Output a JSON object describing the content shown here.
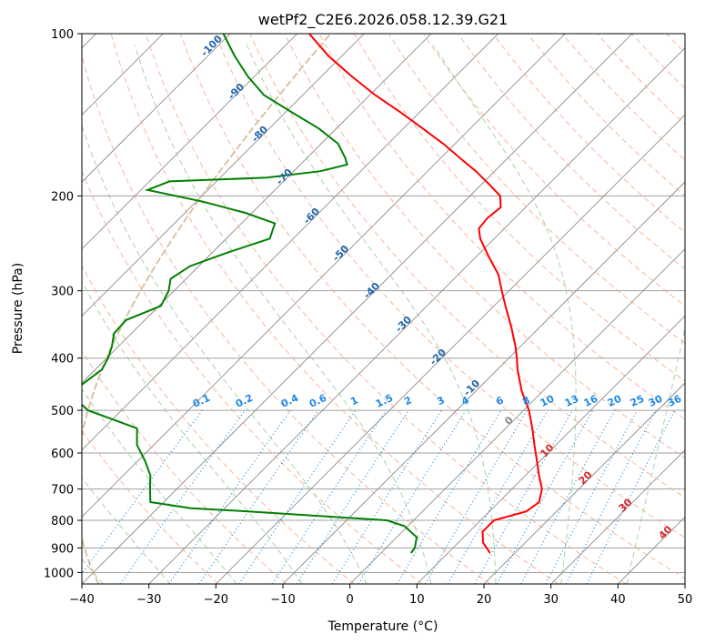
{
  "chart_data": {
    "type": "line",
    "title": "wetPf2_C2E6.2026.058.12.39.G21",
    "xlabel": "Temperature (°C)",
    "ylabel": "Pressure (hPa)",
    "xlim": [
      -40,
      50
    ],
    "ylim": [
      1050,
      100
    ],
    "y_scale": "log",
    "grid": true,
    "x_ticks": [
      -40,
      -30,
      -20,
      -10,
      0,
      10,
      20,
      30,
      40,
      50
    ],
    "y_ticks": [
      100,
      200,
      300,
      400,
      500,
      600,
      700,
      800,
      900,
      1000
    ],
    "temperature_profile": {
      "color": "#ff0000",
      "pressure": [
        920,
        880,
        840,
        800,
        770,
        740,
        700,
        660,
        620,
        580,
        540,
        500,
        460,
        420,
        400,
        380,
        350,
        320,
        300,
        280,
        260,
        240,
        230,
        220,
        210,
        200,
        190,
        180,
        170,
        160,
        150,
        140,
        130,
        120,
        110,
        100
      ],
      "temp": [
        16.3,
        13.7,
        12.0,
        12.0,
        15.5,
        16.0,
        14.5,
        12.0,
        9.5,
        6.8,
        4.0,
        0.8,
        -3.2,
        -7.0,
        -8.8,
        -10.8,
        -14.3,
        -18.3,
        -21.1,
        -24.0,
        -28.0,
        -32.1,
        -33.8,
        -34.1,
        -33.7,
        -35.5,
        -39.0,
        -42.8,
        -47.2,
        -51.8,
        -57.1,
        -62.8,
        -69.2,
        -75.5,
        -82.0,
        -88.2
      ]
    },
    "dewpoint_profile": {
      "color": "#008000",
      "pressure": [
        920,
        900,
        860,
        820,
        800,
        770,
        760,
        740,
        700,
        660,
        620,
        580,
        540,
        500,
        470,
        450,
        420,
        400,
        380,
        360,
        340,
        320,
        300,
        285,
        270,
        255,
        240,
        225,
        215,
        205,
        195,
        188,
        185,
        180,
        175,
        170,
        160,
        150,
        140,
        130,
        120,
        110,
        100
      ],
      "dewpoint": [
        4.5,
        4.3,
        3.0,
        -0.5,
        -4.0,
        -26.0,
        -35.0,
        -42.0,
        -44.0,
        -46.0,
        -49.0,
        -52.5,
        -55.0,
        -65.0,
        -69.5,
        -69.8,
        -69.0,
        -69.8,
        -71.0,
        -72.6,
        -72.8,
        -69.7,
        -70.8,
        -72.3,
        -71.3,
        -67.8,
        -63.5,
        -65.0,
        -71.0,
        -79.0,
        -89.0,
        -87.0,
        -73.0,
        -66.0,
        -63.0,
        -64.3,
        -67.5,
        -72.6,
        -79.0,
        -85.8,
        -91.0,
        -96.0,
        -101.0
      ]
    },
    "dry_adiabats_K": [
      250,
      260,
      270,
      280,
      290,
      300,
      310,
      320,
      330,
      340,
      350,
      360,
      370,
      380,
      390,
      400,
      410,
      420,
      430,
      440,
      450,
      460,
      470,
      480,
      490,
      500,
      510,
      520,
      530,
      540
    ],
    "moist_adiabats_C": [
      -100,
      -90,
      -80,
      -70,
      -60,
      -50,
      -40,
      -30,
      -20,
      -10,
      0,
      10,
      20,
      30,
      40
    ],
    "moist_adiabat_labels": {
      "cold": [
        "-100",
        "-90",
        "-80",
        "-70",
        "-60",
        "-50",
        "-40",
        "-30",
        "-20",
        "-10"
      ],
      "warm": [
        "0",
        "10",
        "20",
        "30",
        "40"
      ]
    },
    "mixing_ratio_lines_gkg": [
      0.1,
      0.2,
      0.4,
      0.6,
      1,
      1.5,
      2,
      3,
      4,
      6,
      8,
      10,
      13,
      16,
      20,
      25,
      30,
      36
    ],
    "mixing_ratio_labels": [
      "0.1",
      "0.2",
      "0.4",
      "0.6",
      "1",
      "1.5",
      "2",
      "3",
      "4",
      "6",
      "8",
      "10",
      "13",
      "16",
      "20",
      "25",
      "30",
      "36"
    ],
    "colors": {
      "dry_adiabat": "#f4a582",
      "moist_adiabat": "#8fc98f",
      "mixing_ratio": "#1e88e5",
      "isotherm": "#808080",
      "isobar": "#a0a0a0",
      "cold_label": "#2166ac",
      "warm_label": "#d62728",
      "zero_label": "#888888",
      "ice_curve": "#d2b48c"
    }
  }
}
